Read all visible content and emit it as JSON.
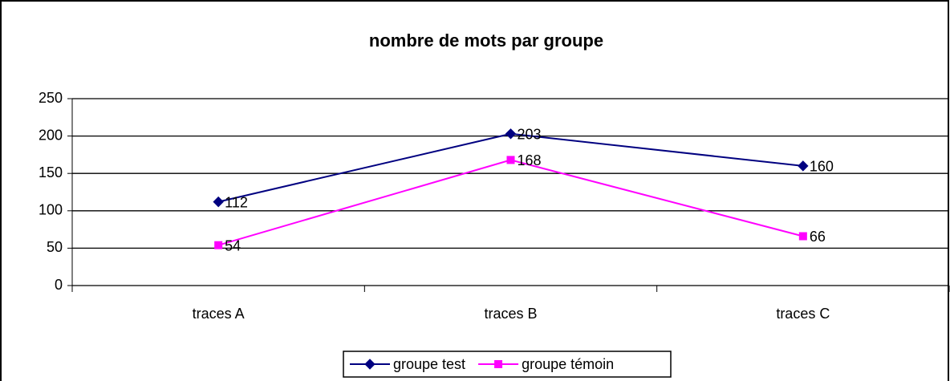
{
  "chart_data": {
    "type": "line",
    "title": "nombre de mots par groupe",
    "categories": [
      "traces A",
      "traces B",
      "traces C"
    ],
    "series": [
      {
        "name": "groupe test",
        "color": "#000080",
        "marker": "diamond",
        "values": [
          112,
          203,
          160
        ]
      },
      {
        "name": "groupe témoin",
        "color": "#ff00ff",
        "marker": "square",
        "values": [
          54,
          168,
          66
        ]
      }
    ],
    "ylim": [
      0,
      250
    ],
    "yticks": [
      0,
      50,
      100,
      150,
      200,
      250
    ],
    "grid": true,
    "legend": "bottom"
  }
}
